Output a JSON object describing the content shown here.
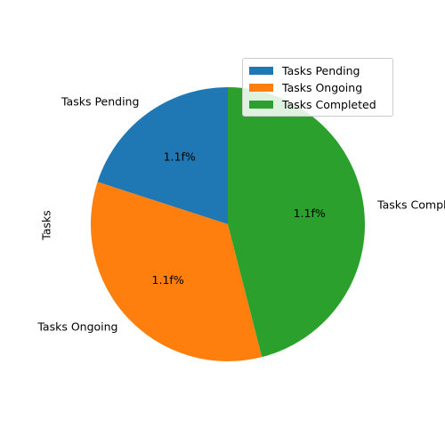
{
  "chart_data": {
    "type": "pie",
    "ylabel": "Tasks",
    "categories": [
      "Tasks Pending",
      "Tasks Ongoing",
      "Tasks Completed"
    ],
    "values": [
      20,
      34,
      46
    ],
    "slice_labels": [
      "1.1f%",
      "1.1f%",
      "1.1f%"
    ],
    "colors": [
      "#1f77b4",
      "#ff7f0e",
      "#2ca02c"
    ],
    "start_angle_deg": 90,
    "direction": "counterclockwise",
    "legend": {
      "position": "upper-right",
      "entries": [
        "Tasks Pending",
        "Tasks Ongoing",
        "Tasks Completed"
      ]
    }
  }
}
